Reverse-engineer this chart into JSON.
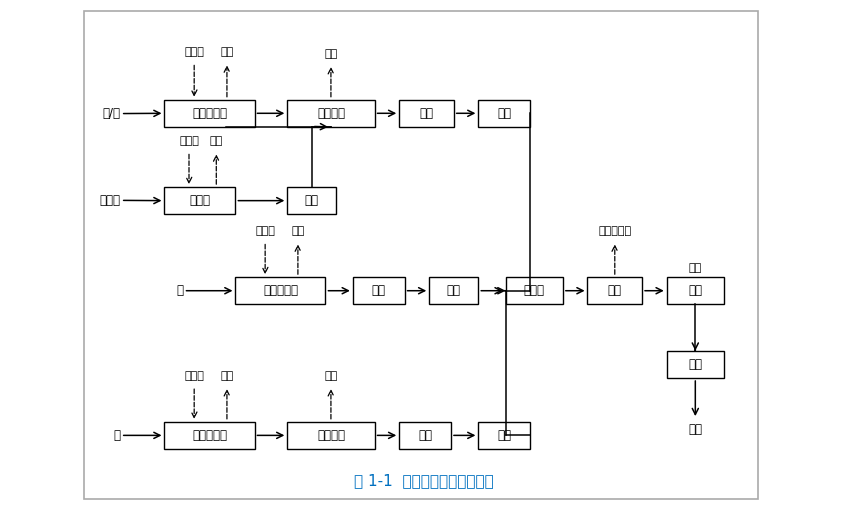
{
  "title": "图 1-1  金属件生产工艺流程图",
  "title_color": "#0070c0",
  "bg_color": "#ffffff",
  "figsize": [
    8.42,
    5.05
  ],
  "dpi": 100,
  "boxes": {
    "zhongpin1": [
      1.4,
      7.8,
      1.7,
      0.52
    ],
    "jiaozhu": [
      3.6,
      7.8,
      1.65,
      0.52
    ],
    "jiemo": [
      5.7,
      7.8,
      1.05,
      0.52
    ],
    "lengque1": [
      7.2,
      7.8,
      1.0,
      0.52
    ],
    "shexinji": [
      1.4,
      6.1,
      1.3,
      0.52
    ],
    "xiaxin": [
      3.6,
      6.1,
      0.95,
      0.52
    ],
    "zhongpin2": [
      2.8,
      4.7,
      1.7,
      0.52
    ],
    "lasi": [
      4.95,
      4.7,
      1.0,
      0.52
    ],
    "lengque2": [
      6.35,
      4.7,
      1.0,
      0.52
    ],
    "jiagong": [
      7.8,
      4.7,
      1.1,
      0.52
    ],
    "paoguang": [
      9.3,
      4.7,
      1.05,
      0.52
    ],
    "diandu": [
      10.8,
      4.7,
      1.05,
      0.52
    ],
    "zhongpin3": [
      1.4,
      2.0,
      1.7,
      0.52
    ],
    "yazhu": [
      3.6,
      2.0,
      1.65,
      0.52
    ],
    "lengque3": [
      5.7,
      2.0,
      1.0,
      0.52
    ],
    "xiubian": [
      7.2,
      2.0,
      1.0,
      0.52
    ],
    "zuzhuang": [
      10.8,
      3.35,
      1.05,
      0.52
    ],
    "copper_row": [
      2.8,
      4.7,
      1.7,
      0.52
    ]
  },
  "box_labels": {
    "zhongpin1": "中频炉熔化",
    "jiaozhu": "浇铸成型",
    "jiemo": "解模",
    "lengque1": "冷却",
    "shexinji": "射芯机",
    "xiaxin": "下芯",
    "zhongpin2": "中频炉熔化",
    "lasi": "拉丝",
    "lengque2": "冷却",
    "jiagong": "机加工",
    "paoguang": "抛光",
    "diandu": "电镀",
    "zhongpin3": "中频炉熔化",
    "yazhu": "压铸成型",
    "lengque3": "冷却",
    "xiubian": "修边",
    "zuzhuang": "组装"
  }
}
